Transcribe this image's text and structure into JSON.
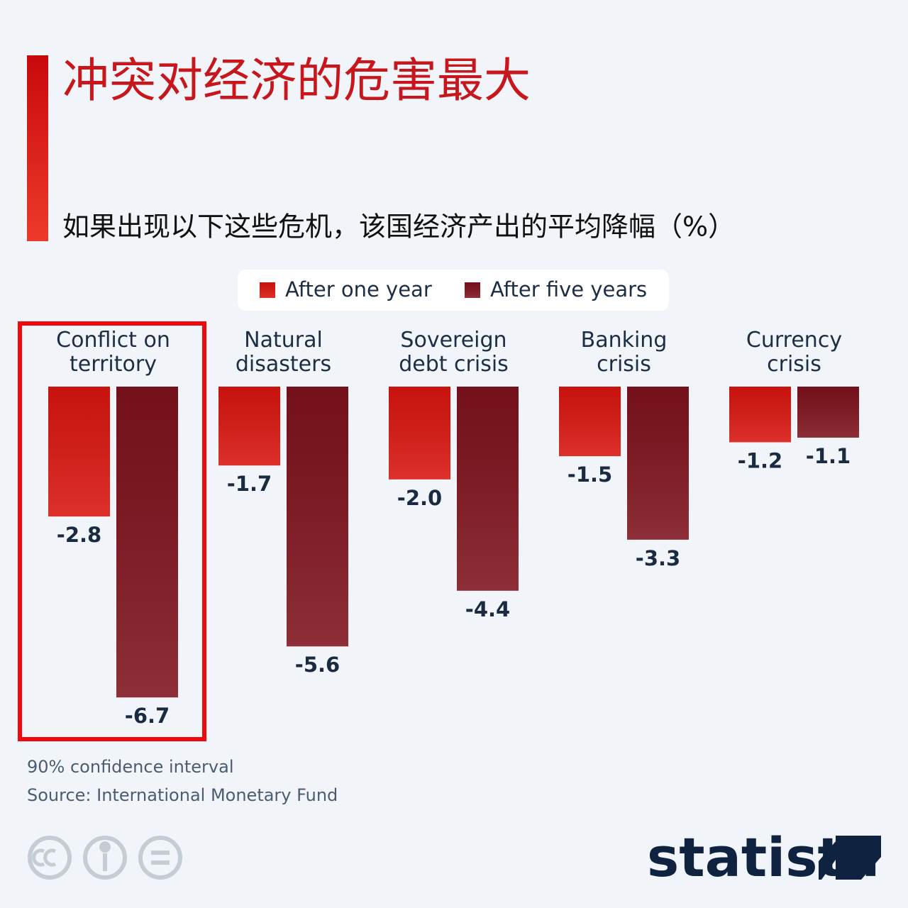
{
  "chart_data": {
    "type": "bar",
    "title": "冲突对经济的危害最大",
    "subtitle": "如果出现以下这些危机，该国经济产出的平均降幅（%）",
    "categories": [
      "Conflict on territory",
      "Natural disasters",
      "Sovereign debt crisis",
      "Banking crisis",
      "Currency crisis"
    ],
    "series": [
      {
        "name": "After one year",
        "color": "#d9150f",
        "values": [
          -2.8,
          -1.7,
          -2.0,
          -1.5,
          -1.2
        ],
        "value_labels": [
          "-2.8",
          "-1.7",
          "-2.0",
          "-1.5",
          "-1.2"
        ]
      },
      {
        "name": "After five years",
        "color": "#7e121d",
        "values": [
          -6.7,
          -5.6,
          -4.4,
          -3.3,
          -1.1
        ],
        "value_labels": [
          "-6.7",
          "-5.6",
          "-4.4",
          "-3.3",
          "-1.1"
        ]
      }
    ],
    "annotations": [
      "90% confidence interval",
      "Source: International Monetary Fund"
    ],
    "logo": "statista"
  }
}
